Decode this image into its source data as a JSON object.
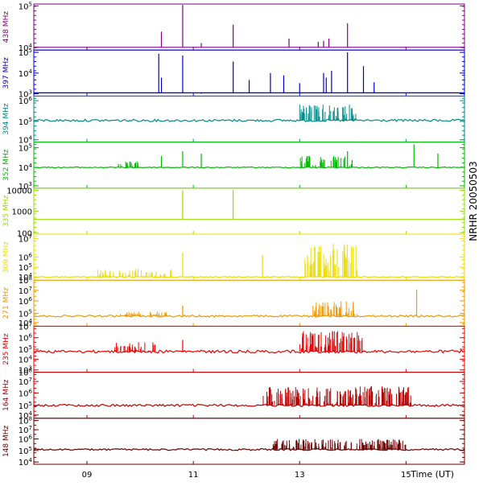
{
  "chart_data": {
    "type": "line",
    "title": "NRHR 20050503",
    "xlabel": "Time (UT)",
    "x_ticks": [
      "09",
      "11",
      "13",
      "15"
    ],
    "x_range_hours": [
      8.0,
      16.1
    ],
    "series": [
      {
        "name": "438 MHz",
        "color": "#800080",
        "y_ticks": [
          {
            "label": "10",
            "sup": "4",
            "frac": 0.94
          },
          {
            "label": "10",
            "sup": "5",
            "frac": 0.04
          }
        ],
        "baseline": 0.94,
        "noise": 0.0,
        "spikes": [
          {
            "t": 10.4,
            "frac": 0.6
          },
          {
            "t": 10.8,
            "frac": 0.02
          },
          {
            "t": 11.15,
            "frac": 0.85
          },
          {
            "t": 11.75,
            "frac": 0.45
          },
          {
            "t": 12.8,
            "frac": 0.75
          },
          {
            "t": 13.35,
            "frac": 0.82
          },
          {
            "t": 13.45,
            "frac": 0.8
          },
          {
            "t": 13.55,
            "frac": 0.75
          },
          {
            "t": 13.9,
            "frac": 0.42
          }
        ],
        "activity": []
      },
      {
        "name": "397 MHz",
        "color": "#0000cc",
        "y_ticks": [
          {
            "label": "10",
            "sup": "3",
            "frac": 0.95
          },
          {
            "label": "10",
            "sup": "4",
            "frac": 0.5
          },
          {
            "label": "10",
            "sup": "5",
            "frac": 0.05
          }
        ],
        "baseline": 0.93,
        "noise": 0.0,
        "spikes": [
          {
            "t": 10.35,
            "frac": 0.08
          },
          {
            "t": 10.4,
            "frac": 0.6
          },
          {
            "t": 10.8,
            "frac": 0.12
          },
          {
            "t": 11.15,
            "frac": 0.95
          },
          {
            "t": 11.75,
            "frac": 0.25
          },
          {
            "t": 12.05,
            "frac": 0.65
          },
          {
            "t": 12.45,
            "frac": 0.5
          },
          {
            "t": 12.7,
            "frac": 0.55
          },
          {
            "t": 13.0,
            "frac": 0.72
          },
          {
            "t": 13.45,
            "frac": 0.5
          },
          {
            "t": 13.5,
            "frac": 0.6
          },
          {
            "t": 13.6,
            "frac": 0.45
          },
          {
            "t": 13.9,
            "frac": 0.05
          },
          {
            "t": 14.2,
            "frac": 0.35
          },
          {
            "t": 14.4,
            "frac": 0.7
          }
        ],
        "activity": []
      },
      {
        "name": "394 MHz",
        "color": "#008b8b",
        "y_ticks": [
          {
            "label": "10",
            "sup": "4",
            "frac": 0.95
          },
          {
            "label": "10",
            "sup": "5",
            "frac": 0.55
          },
          {
            "label": "10",
            "sup": "6",
            "frac": 0.1
          }
        ],
        "baseline": 0.53,
        "noise": 0.05,
        "spikes": [],
        "activity": [
          {
            "t0": 13.0,
            "t1": 14.1,
            "frac": 0.18,
            "density": 0.8
          }
        ]
      },
      {
        "name": "352 MHz",
        "color": "#00bb00",
        "y_ticks": [
          {
            "label": "10",
            "sup": "3",
            "frac": 0.95
          },
          {
            "label": "10",
            "sup": "4",
            "frac": 0.55
          },
          {
            "label": "10",
            "sup": "5",
            "frac": 0.12
          }
        ],
        "baseline": 0.55,
        "noise": 0.02,
        "spikes": [
          {
            "t": 10.4,
            "frac": 0.3
          },
          {
            "t": 10.8,
            "frac": 0.2
          },
          {
            "t": 11.15,
            "frac": 0.25
          },
          {
            "t": 13.9,
            "frac": 0.2
          },
          {
            "t": 15.15,
            "frac": 0.05
          },
          {
            "t": 15.6,
            "frac": 0.25
          }
        ],
        "activity": [
          {
            "t0": 9.5,
            "t1": 10.0,
            "frac": 0.42,
            "density": 0.6
          },
          {
            "t0": 13.0,
            "t1": 14.0,
            "frac": 0.3,
            "density": 0.7
          }
        ]
      },
      {
        "name": "335 MHz",
        "color": "#99dd00",
        "y_ticks": [
          {
            "label": "100",
            "sup": "",
            "frac": 0.97
          },
          {
            "label": "1000",
            "sup": "",
            "frac": 0.5
          },
          {
            "label": "10000",
            "sup": "",
            "frac": 0.05
          }
        ],
        "baseline": 0.68,
        "noise": 0.0,
        "spikes": [
          {
            "t": 10.8,
            "frac": 0.05
          },
          {
            "t": 11.75,
            "frac": 0.04
          }
        ],
        "activity": []
      },
      {
        "name": "309 MHz",
        "color": "#eedd00",
        "y_ticks": [
          {
            "label": "10",
            "sup": "4",
            "frac": 0.93
          },
          {
            "label": "10",
            "sup": "5",
            "frac": 0.72
          },
          {
            "label": "10",
            "sup": "6",
            "frac": 0.5
          },
          {
            "label": "10",
            "sup": "7",
            "frac": 0.1
          }
        ],
        "baseline": 0.93,
        "noise": 0.02,
        "spikes": [
          {
            "t": 10.8,
            "frac": 0.4
          },
          {
            "t": 12.3,
            "frac": 0.45
          }
        ],
        "activity": [
          {
            "t0": 9.2,
            "t1": 10.6,
            "frac": 0.75,
            "density": 0.5
          },
          {
            "t0": 13.1,
            "t1": 14.1,
            "frac": 0.2,
            "density": 0.8
          }
        ]
      },
      {
        "name": "271 MHz",
        "color": "#ee9900",
        "y_ticks": [
          {
            "label": "10",
            "sup": "4",
            "frac": 0.92
          },
          {
            "label": "10",
            "sup": "5",
            "frac": 0.72
          },
          {
            "label": "10",
            "sup": "6",
            "frac": 0.45
          },
          {
            "label": "10",
            "sup": "7",
            "frac": 0.22
          },
          {
            "label": "10",
            "sup": "8",
            "frac": 0.0
          }
        ],
        "baseline": 0.78,
        "noise": 0.04,
        "spikes": [
          {
            "t": 10.8,
            "frac": 0.55
          },
          {
            "t": 15.2,
            "frac": 0.2
          }
        ],
        "activity": [
          {
            "t0": 9.5,
            "t1": 10.5,
            "frac": 0.68,
            "density": 0.6
          },
          {
            "t0": 13.2,
            "t1": 14.1,
            "frac": 0.45,
            "density": 0.8
          }
        ]
      },
      {
        "name": "235 MHz",
        "color": "#ee0000",
        "y_ticks": [
          {
            "label": "10",
            "sup": "3",
            "frac": 0.95
          },
          {
            "label": "10",
            "sup": "4",
            "frac": 0.72
          },
          {
            "label": "10",
            "sup": "5",
            "frac": 0.5
          },
          {
            "label": "10",
            "sup": "6",
            "frac": 0.25
          },
          {
            "label": "10",
            "sup": "7",
            "frac": 0.0
          }
        ],
        "baseline": 0.55,
        "noise": 0.06,
        "spikes": [
          {
            "t": 10.8,
            "frac": 0.3
          }
        ],
        "activity": [
          {
            "t0": 9.5,
            "t1": 10.3,
            "frac": 0.35,
            "density": 0.6
          },
          {
            "t0": 13.0,
            "t1": 14.2,
            "frac": 0.1,
            "density": 0.9
          }
        ]
      },
      {
        "name": "164 MHz",
        "color": "#bb0000",
        "y_ticks": [
          {
            "label": "10",
            "sup": "4",
            "frac": 0.93
          },
          {
            "label": "10",
            "sup": "5",
            "frac": 0.72
          },
          {
            "label": "10",
            "sup": "6",
            "frac": 0.45
          },
          {
            "label": "10",
            "sup": "7",
            "frac": 0.2
          },
          {
            "label": "10",
            "sup": "8",
            "frac": 0.0
          }
        ],
        "baseline": 0.72,
        "noise": 0.05,
        "spikes": [],
        "activity": [
          {
            "t0": 12.3,
            "t1": 15.1,
            "frac": 0.3,
            "density": 0.95
          }
        ]
      },
      {
        "name": "148 MHz",
        "color": "#660000",
        "y_ticks": [
          {
            "label": "10",
            "sup": "4",
            "frac": 0.95
          },
          {
            "label": "10",
            "sup": "5",
            "frac": 0.7
          },
          {
            "label": "10",
            "sup": "6",
            "frac": 0.45
          },
          {
            "label": "10",
            "sup": "7",
            "frac": 0.25
          },
          {
            "label": "10",
            "sup": "8",
            "frac": 0.05
          }
        ],
        "baseline": 0.68,
        "noise": 0.04,
        "spikes": [],
        "activity": [
          {
            "t0": 12.5,
            "t1": 15.0,
            "frac": 0.45,
            "density": 0.8
          }
        ]
      }
    ]
  }
}
